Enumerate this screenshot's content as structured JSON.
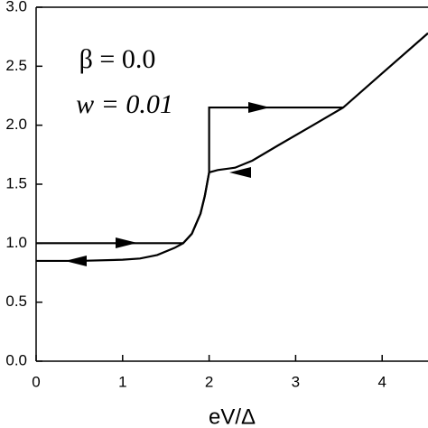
{
  "chart_data": {
    "type": "line",
    "annotations": [
      "β = 0.0",
      "w = 0.01"
    ],
    "xlabel": "eV/Δ",
    "series": [
      {
        "color": "#000000",
        "x": [
          0,
          1.7,
          1.8,
          1.9,
          1.95,
          2.0,
          2.0,
          3.55
        ],
        "values": [
          1.0,
          1.0,
          1.08,
          1.25,
          1.4,
          1.6,
          2.15,
          2.15
        ]
      },
      {
        "color": "#000000",
        "x": [
          0,
          0.5,
          1.0,
          1.2,
          1.4,
          1.6,
          1.7,
          1.8,
          1.9,
          1.95,
          2.0,
          2.1,
          2.3,
          2.5,
          2.8,
          3.2,
          3.55,
          4.0,
          4.53
        ],
        "values": [
          0.85,
          0.85,
          0.86,
          0.87,
          0.9,
          0.96,
          1.0,
          1.08,
          1.25,
          1.4,
          1.6,
          1.62,
          1.64,
          1.7,
          1.83,
          2.0,
          2.15,
          2.44,
          2.78
        ]
      }
    ],
    "xlim": [
      0,
      4.53
    ],
    "ylim": [
      0,
      3
    ],
    "xticks": [
      0,
      1,
      2,
      3,
      4
    ],
    "yticks": [
      {
        "value": 0,
        "label": "0.0"
      },
      {
        "value": 0.5,
        "label": "0.5"
      },
      {
        "value": 1,
        "label": "1.0"
      },
      {
        "value": 1.5,
        "label": "1.5"
      },
      {
        "value": 2,
        "label": "2.0"
      },
      {
        "value": 2.5,
        "label": "2.5"
      },
      {
        "value": 3,
        "label": "3.0"
      }
    ],
    "grid": false
  }
}
